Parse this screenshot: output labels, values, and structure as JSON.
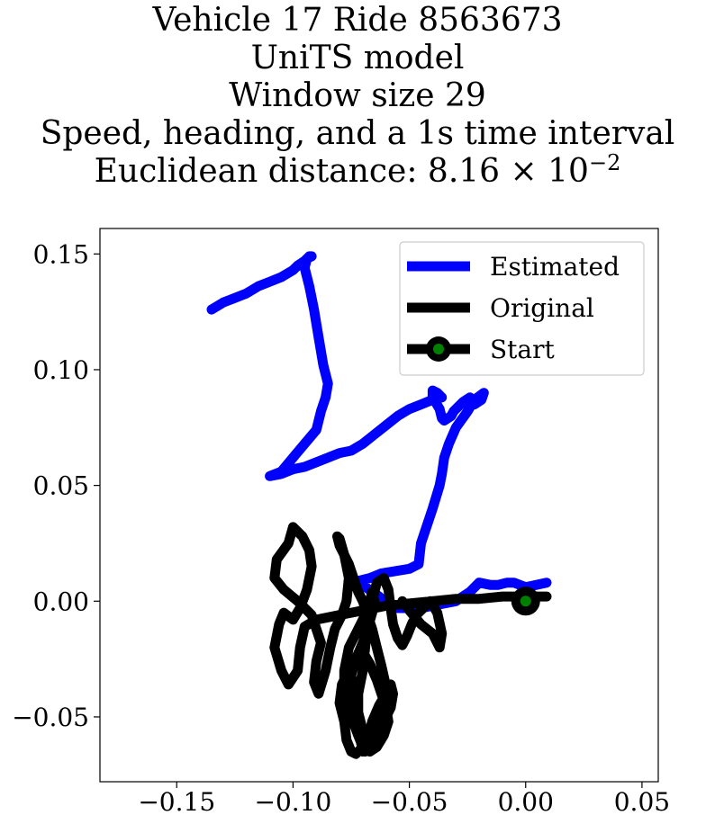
{
  "chart_data": {
    "type": "line",
    "title_lines": [
      "Vehicle 17 Ride 8563673",
      "UniTS model",
      "Window size 29",
      "Speed, heading, and a 1s time interval"
    ],
    "title_distance_prefix": "Euclidean distance: ",
    "title_distance_mantissa": "8.16",
    "title_distance_times": "×",
    "title_distance_base": "10",
    "title_distance_exponent": "−2",
    "xlim": [
      -0.183,
      0.057
    ],
    "ylim": [
      -0.078,
      0.161
    ],
    "x_ticks": [
      -0.15,
      -0.1,
      -0.05,
      0.0,
      0.05
    ],
    "x_tick_labels": [
      "−0.15",
      "−0.10",
      "−0.05",
      "0.00",
      "0.05"
    ],
    "y_ticks": [
      -0.05,
      0.0,
      0.05,
      0.1,
      0.15
    ],
    "y_tick_labels": [
      "−0.05",
      "0.00",
      "0.05",
      "0.10",
      "0.15"
    ],
    "grid": false,
    "legend_position": "top-right",
    "series": [
      {
        "name": "Estimated",
        "color": "#0000ff",
        "x": [
          0.009,
          0.0,
          -0.005,
          -0.008,
          -0.012,
          -0.015,
          -0.02,
          -0.024,
          -0.027,
          -0.03,
          -0.035,
          -0.045,
          -0.055,
          -0.06,
          -0.063,
          -0.066,
          -0.07,
          -0.072,
          -0.075,
          -0.067,
          -0.062,
          -0.05,
          -0.046,
          -0.045,
          -0.04,
          -0.037,
          -0.036,
          -0.035,
          -0.033,
          -0.03,
          -0.025,
          -0.022,
          -0.018,
          -0.019,
          -0.022,
          -0.024,
          -0.027,
          -0.031,
          -0.032,
          -0.035,
          -0.036,
          -0.037,
          -0.04,
          -0.04,
          -0.038,
          -0.036,
          -0.04,
          -0.045,
          -0.05,
          -0.055,
          -0.06,
          -0.065,
          -0.07,
          -0.075,
          -0.08,
          -0.085,
          -0.09,
          -0.095,
          -0.1,
          -0.105,
          -0.11,
          -0.105,
          -0.1,
          -0.095,
          -0.09,
          -0.088,
          -0.086,
          -0.085,
          -0.087,
          -0.089,
          -0.091,
          -0.093,
          -0.095,
          -0.094,
          -0.092,
          -0.093,
          -0.095,
          -0.098,
          -0.1,
          -0.105,
          -0.11,
          -0.115,
          -0.12,
          -0.125,
          -0.13,
          -0.135
        ],
        "y": [
          0.008,
          0.006,
          0.008,
          0.008,
          0.007,
          0.007,
          0.008,
          0.004,
          0.002,
          0.0,
          -0.001,
          -0.003,
          -0.003,
          -0.001,
          0.002,
          0.004,
          0.007,
          0.008,
          0.008,
          0.01,
          0.012,
          0.014,
          0.016,
          0.025,
          0.04,
          0.05,
          0.055,
          0.062,
          0.068,
          0.075,
          0.082,
          0.087,
          0.09,
          0.087,
          0.085,
          0.088,
          0.086,
          0.082,
          0.08,
          0.078,
          0.079,
          0.083,
          0.088,
          0.091,
          0.09,
          0.088,
          0.087,
          0.085,
          0.083,
          0.08,
          0.076,
          0.072,
          0.068,
          0.065,
          0.064,
          0.062,
          0.06,
          0.058,
          0.057,
          0.055,
          0.054,
          0.056,
          0.062,
          0.068,
          0.074,
          0.082,
          0.088,
          0.094,
          0.102,
          0.114,
          0.126,
          0.136,
          0.144,
          0.148,
          0.149,
          0.149,
          0.147,
          0.145,
          0.143,
          0.14,
          0.138,
          0.136,
          0.133,
          0.131,
          0.129,
          0.126
        ]
      },
      {
        "name": "Original",
        "color": "#000000",
        "x": [
          0.009,
          0.0,
          -0.01,
          -0.02,
          -0.03,
          -0.04,
          -0.05,
          -0.06,
          -0.07,
          -0.08,
          -0.09,
          -0.095,
          -0.097,
          -0.098,
          -0.102,
          -0.105,
          -0.108,
          -0.106,
          -0.104,
          -0.1,
          -0.097,
          -0.094,
          -0.092,
          -0.093,
          -0.096,
          -0.1,
          -0.102,
          -0.107,
          -0.108,
          -0.104,
          -0.098,
          -0.092,
          -0.09,
          -0.088,
          -0.09,
          -0.091,
          -0.089,
          -0.086,
          -0.084,
          -0.082,
          -0.079,
          -0.077,
          -0.076,
          -0.078,
          -0.08,
          -0.081,
          -0.08,
          -0.078,
          -0.076,
          -0.074,
          -0.072,
          -0.07,
          -0.068,
          -0.066,
          -0.064,
          -0.062,
          -0.06,
          -0.062,
          -0.065,
          -0.067,
          -0.07,
          -0.073,
          -0.075,
          -0.077,
          -0.078,
          -0.08,
          -0.079,
          -0.076,
          -0.073,
          -0.07,
          -0.067,
          -0.064,
          -0.062,
          -0.06,
          -0.059,
          -0.061,
          -0.064,
          -0.067,
          -0.069,
          -0.07,
          -0.072,
          -0.074,
          -0.075,
          -0.073,
          -0.07,
          -0.068,
          -0.066,
          -0.065,
          -0.066,
          -0.068,
          -0.072,
          -0.076,
          -0.078,
          -0.078,
          -0.075,
          -0.072,
          -0.07,
          -0.069,
          -0.068,
          -0.066,
          -0.063,
          -0.06,
          -0.058,
          -0.057,
          -0.058,
          -0.061,
          -0.064,
          -0.067,
          -0.07,
          -0.071,
          -0.072,
          -0.072,
          -0.07,
          -0.069,
          -0.068,
          -0.066,
          -0.064,
          -0.061,
          -0.059,
          -0.058,
          -0.057,
          -0.055,
          -0.053,
          -0.051,
          -0.049,
          -0.047,
          -0.044,
          -0.041,
          -0.038,
          -0.036,
          -0.037,
          -0.04,
          -0.045,
          -0.05,
          -0.053
        ],
        "y": [
          0.002,
          0.002,
          0.002,
          0.001,
          0.001,
          0.0,
          -0.001,
          -0.002,
          -0.004,
          -0.006,
          -0.008,
          -0.011,
          -0.02,
          -0.03,
          -0.036,
          -0.03,
          -0.02,
          -0.01,
          -0.005,
          -0.008,
          -0.003,
          0.005,
          0.015,
          0.022,
          0.028,
          0.032,
          0.025,
          0.018,
          0.01,
          0.005,
          0.0,
          -0.006,
          -0.012,
          -0.018,
          -0.026,
          -0.035,
          -0.04,
          -0.03,
          -0.02,
          -0.012,
          -0.006,
          0.0,
          0.01,
          0.02,
          0.027,
          0.028,
          0.024,
          0.02,
          0.016,
          0.01,
          0.004,
          0.0,
          -0.006,
          -0.012,
          -0.02,
          -0.028,
          -0.037,
          -0.045,
          -0.052,
          -0.058,
          -0.063,
          -0.066,
          -0.065,
          -0.06,
          -0.052,
          -0.044,
          -0.036,
          -0.03,
          -0.025,
          -0.022,
          -0.027,
          -0.034,
          -0.04,
          -0.046,
          -0.052,
          -0.058,
          -0.063,
          -0.065,
          -0.062,
          -0.056,
          -0.048,
          -0.04,
          -0.032,
          -0.025,
          -0.018,
          -0.012,
          -0.005,
          0.0,
          0.004,
          -0.004,
          -0.012,
          -0.02,
          -0.03,
          -0.04,
          -0.05,
          -0.058,
          -0.063,
          -0.065,
          -0.06,
          -0.052,
          -0.045,
          -0.04,
          -0.036,
          -0.04,
          -0.046,
          -0.052,
          -0.058,
          -0.063,
          -0.065,
          -0.06,
          -0.05,
          -0.04,
          -0.03,
          -0.02,
          -0.01,
          0.0,
          0.008,
          0.01,
          0.005,
          -0.003,
          -0.01,
          -0.016,
          -0.019,
          -0.015,
          -0.01,
          -0.006,
          -0.003,
          0.0,
          -0.005,
          -0.014,
          -0.02,
          -0.014,
          -0.01,
          -0.004,
          0.0
        ]
      }
    ],
    "start_point": {
      "name": "Start",
      "x": 0.0,
      "y": 0.0,
      "marker_color": "#008000",
      "edge_color": "#000000"
    }
  }
}
